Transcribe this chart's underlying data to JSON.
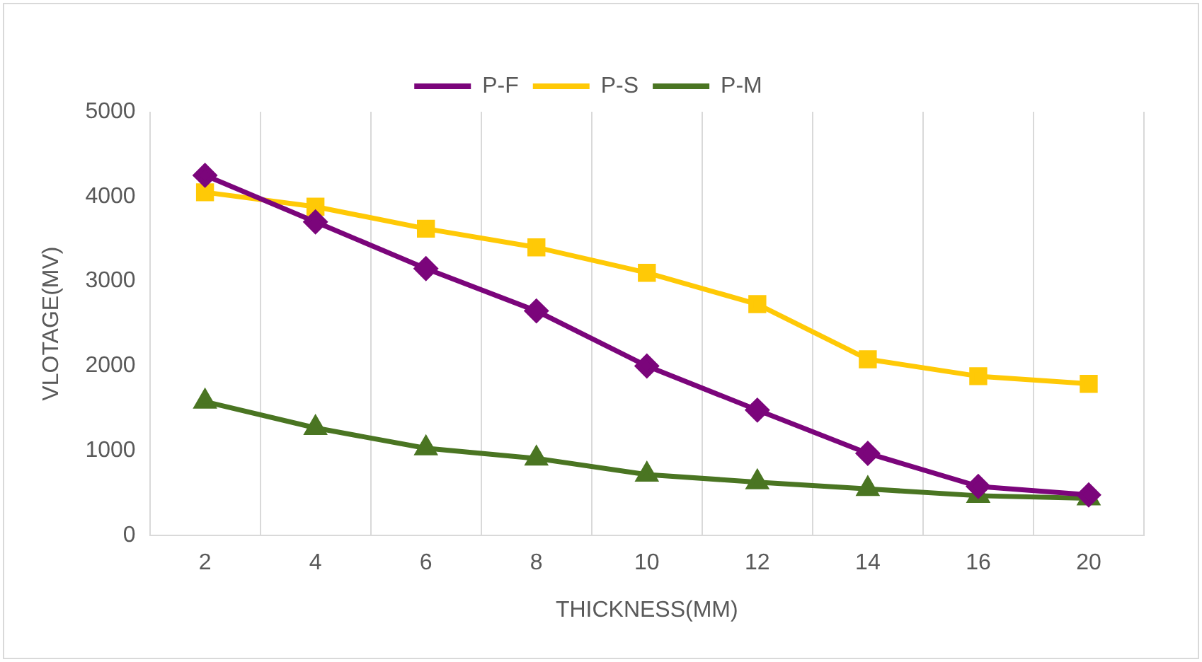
{
  "chart_data": {
    "type": "line",
    "xlabel": "THICKNESS(MM)",
    "ylabel": "VLOTAGE(MV)",
    "categories": [
      "2",
      "4",
      "6",
      "8",
      "10",
      "12",
      "14",
      "16",
      "20"
    ],
    "series": [
      {
        "name": "P-F",
        "color": "#7b057b",
        "marker": "diamond",
        "values": [
          4250,
          3700,
          3150,
          2650,
          2000,
          1480,
          970,
          580,
          480
        ]
      },
      {
        "name": "P-S",
        "color": "#ffc906",
        "marker": "square",
        "values": [
          4050,
          3880,
          3620,
          3400,
          3100,
          2730,
          2080,
          1880,
          1790
        ]
      },
      {
        "name": "P-M",
        "color": "#4a7522",
        "marker": "triangle",
        "values": [
          1580,
          1270,
          1030,
          910,
          720,
          630,
          550,
          470,
          440
        ]
      }
    ],
    "ylim": [
      0,
      5000
    ],
    "yticks": [
      0,
      1000,
      2000,
      3000,
      4000,
      5000
    ],
    "grid": "x",
    "legend": "top",
    "line_style": "solid"
  }
}
